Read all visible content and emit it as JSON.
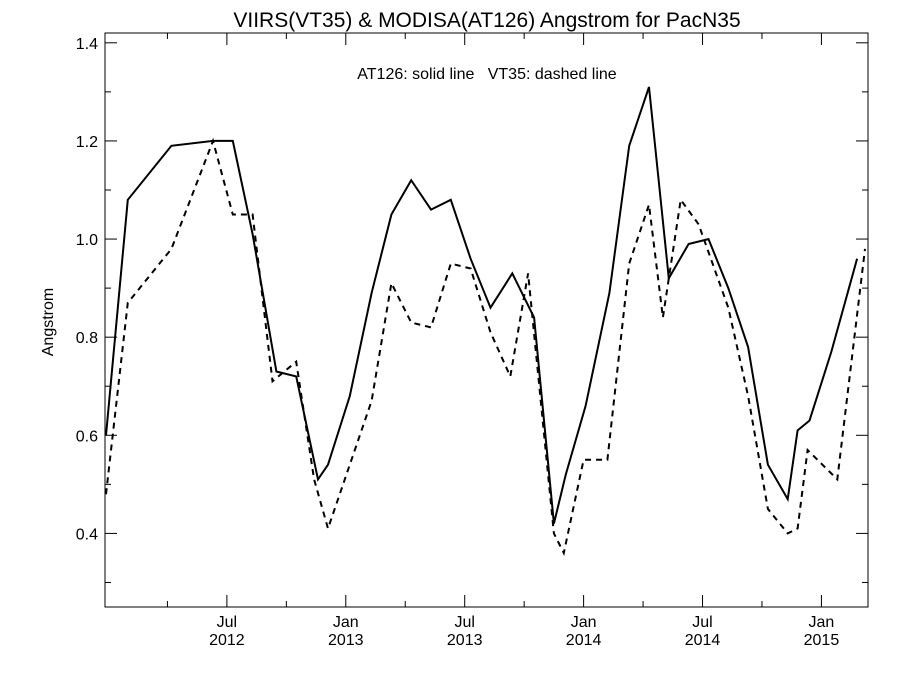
{
  "chart_data": {
    "type": "line",
    "title": "VIIRS(VT35) & MODISA(AT126)  Angstrom for PacN35",
    "annotation": "AT126: solid line   VT35: dashed line",
    "ylabel": "Angstrom",
    "xlabel": "",
    "ylim": [
      0.25,
      1.42
    ],
    "y_ticks": [
      "0.4",
      "0.6",
      "0.8",
      "1.0",
      "1.2",
      "1.4"
    ],
    "x_tick_labels": [
      {
        "month": "Jul",
        "year": "2012",
        "t": 6
      },
      {
        "month": "Jan",
        "year": "2013",
        "t": 12
      },
      {
        "month": "Jul",
        "year": "2013",
        "t": 18
      },
      {
        "month": "Jan",
        "year": "2014",
        "t": 24
      },
      {
        "month": "Jul",
        "year": "2014",
        "t": 30
      },
      {
        "month": "Jan",
        "year": "2015",
        "t": 36
      }
    ],
    "x_time_unit": "months since Jan 2012",
    "xlim": [
      -0.15,
      38.35
    ],
    "grid": false,
    "colors": {
      "line": "#000000",
      "background": "#ffffff"
    },
    "series": [
      {
        "name": "AT126",
        "style": "solid",
        "points": [
          [
            -0.1,
            0.6
          ],
          [
            1.0,
            1.08
          ],
          [
            3.2,
            1.19
          ],
          [
            5.3,
            1.2
          ],
          [
            6.3,
            1.2
          ],
          [
            7.3,
            1.01
          ],
          [
            8.5,
            0.73
          ],
          [
            9.5,
            0.72
          ],
          [
            10.6,
            0.51
          ],
          [
            11.1,
            0.54
          ],
          [
            12.2,
            0.68
          ],
          [
            13.3,
            0.89
          ],
          [
            14.3,
            1.05
          ],
          [
            15.3,
            1.12
          ],
          [
            16.3,
            1.06
          ],
          [
            17.3,
            1.08
          ],
          [
            18.3,
            0.96
          ],
          [
            19.3,
            0.86
          ],
          [
            20.4,
            0.93
          ],
          [
            21.5,
            0.84
          ],
          [
            22.5,
            0.42
          ],
          [
            23.1,
            0.52
          ],
          [
            24.1,
            0.66
          ],
          [
            25.3,
            0.89
          ],
          [
            26.3,
            1.19
          ],
          [
            27.3,
            1.31
          ],
          [
            28.3,
            0.92
          ],
          [
            29.3,
            0.99
          ],
          [
            30.3,
            1.0
          ],
          [
            31.3,
            0.9
          ],
          [
            32.3,
            0.78
          ],
          [
            33.3,
            0.54
          ],
          [
            34.3,
            0.47
          ],
          [
            34.8,
            0.61
          ],
          [
            35.4,
            0.63
          ],
          [
            36.5,
            0.77
          ],
          [
            37.8,
            0.96
          ]
        ]
      },
      {
        "name": "VT35",
        "style": "dashed",
        "points": [
          [
            -0.1,
            0.48
          ],
          [
            1.0,
            0.87
          ],
          [
            3.2,
            0.98
          ],
          [
            5.3,
            1.2
          ],
          [
            6.3,
            1.05
          ],
          [
            7.3,
            1.05
          ],
          [
            8.3,
            0.71
          ],
          [
            9.5,
            0.75
          ],
          [
            10.4,
            0.51
          ],
          [
            11.1,
            0.41
          ],
          [
            12.2,
            0.54
          ],
          [
            13.3,
            0.67
          ],
          [
            14.3,
            0.91
          ],
          [
            15.3,
            0.83
          ],
          [
            16.3,
            0.82
          ],
          [
            17.3,
            0.95
          ],
          [
            18.3,
            0.94
          ],
          [
            19.3,
            0.81
          ],
          [
            20.3,
            0.72
          ],
          [
            21.2,
            0.93
          ],
          [
            22.5,
            0.4
          ],
          [
            23.0,
            0.36
          ],
          [
            24.0,
            0.55
          ],
          [
            25.2,
            0.55
          ],
          [
            26.3,
            0.95
          ],
          [
            27.3,
            1.07
          ],
          [
            28.0,
            0.84
          ],
          [
            28.9,
            1.08
          ],
          [
            29.8,
            1.03
          ],
          [
            31.3,
            0.86
          ],
          [
            32.3,
            0.68
          ],
          [
            33.3,
            0.45
          ],
          [
            34.3,
            0.4
          ],
          [
            34.8,
            0.41
          ],
          [
            35.3,
            0.57
          ],
          [
            36.8,
            0.51
          ],
          [
            38.2,
            0.98
          ]
        ]
      }
    ]
  }
}
